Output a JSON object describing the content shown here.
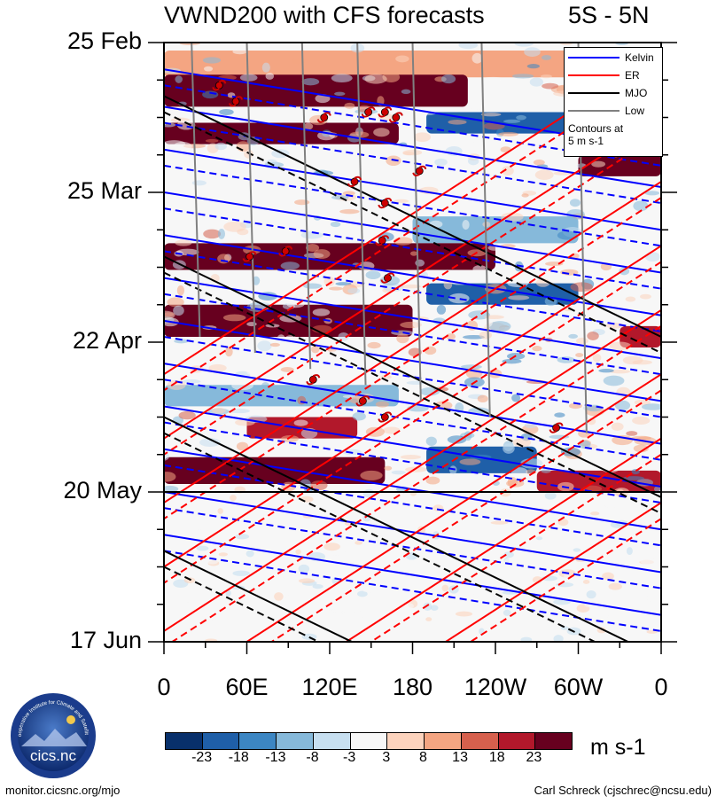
{
  "chart_data": {
    "type": "heatmap",
    "title": "VWND200 with CFS forecasts",
    "region": "5S - 5N",
    "xlabel": "",
    "ylabel": "",
    "x_ticks": [
      "0",
      "60E",
      "120E",
      "180",
      "120W",
      "60W",
      "0"
    ],
    "x_range_deg": [
      0,
      360
    ],
    "y_ticks": [
      "25 Feb",
      "25 Mar",
      "22 Apr",
      "20 May",
      "17 Jun"
    ],
    "y_range_days": [
      0,
      112
    ],
    "forecast_start_day": 84,
    "colorbar": {
      "units": "m s-1",
      "ticks": [
        "-23",
        "-18",
        "-13",
        "-8",
        "-3",
        "3",
        "8",
        "13",
        "18",
        "23"
      ],
      "colors": [
        "#08306b",
        "#1f5fa8",
        "#3c86c3",
        "#86b9da",
        "#c7dff0",
        "#f7f7f7",
        "#fcd3bd",
        "#f4a582",
        "#d6604d",
        "#b2182b",
        "#67001f"
      ]
    },
    "bands": [
      {
        "day": 4,
        "halfwidth": 2.5,
        "value": 8,
        "x_from": 0,
        "x_to": 360
      },
      {
        "day": 9,
        "halfwidth": 3,
        "value": 23,
        "x_from": 0,
        "x_to": 220
      },
      {
        "day": 15,
        "halfwidth": 2,
        "value": -23,
        "x_from": 190,
        "x_to": 330
      },
      {
        "day": 17,
        "halfwidth": 2,
        "value": 23,
        "x_from": 0,
        "x_to": 170
      },
      {
        "day": 23,
        "halfwidth": 2,
        "value": 23,
        "x_from": 300,
        "x_to": 360
      },
      {
        "day": 35,
        "halfwidth": 2.5,
        "value": -13,
        "x_from": 180,
        "x_to": 300
      },
      {
        "day": 40,
        "halfwidth": 2.5,
        "value": 23,
        "x_from": 0,
        "x_to": 240
      },
      {
        "day": 47,
        "halfwidth": 2,
        "value": -23,
        "x_from": 190,
        "x_to": 300
      },
      {
        "day": 52,
        "halfwidth": 3,
        "value": 23,
        "x_from": 0,
        "x_to": 180
      },
      {
        "day": 55,
        "halfwidth": 2,
        "value": 18,
        "x_from": 330,
        "x_to": 360
      },
      {
        "day": 66,
        "halfwidth": 2,
        "value": -13,
        "x_from": 0,
        "x_to": 170
      },
      {
        "day": 72,
        "halfwidth": 2,
        "value": 18,
        "x_from": 60,
        "x_to": 140
      },
      {
        "day": 78,
        "halfwidth": 2.5,
        "value": -23,
        "x_from": 190,
        "x_to": 270
      },
      {
        "day": 80,
        "halfwidth": 2.5,
        "value": 23,
        "x_from": 0,
        "x_to": 160
      },
      {
        "day": 82,
        "halfwidth": 2,
        "value": 18,
        "x_from": 270,
        "x_to": 360
      }
    ],
    "series": [
      {
        "name": "Kelvin",
        "color": "#0000ff",
        "start_days": [
          5,
          12,
          20,
          28,
          36,
          44,
          52,
          60,
          68,
          76,
          84,
          92
        ],
        "slope_deg_per_day": 24
      },
      {
        "name": "ER",
        "color": "#ff0000",
        "start_days": [
          2,
          14,
          26,
          38,
          50,
          62,
          74,
          86
        ],
        "slope_deg_per_day": -6
      },
      {
        "name": "MJO",
        "color": "#000000",
        "start_days": [
          10,
          40,
          70,
          95
        ],
        "slope_deg_per_day": 8
      },
      {
        "name": "Low",
        "color": "#808080",
        "start_days": [
          0
        ],
        "slope_deg_per_day": 0
      }
    ],
    "storms": [
      {
        "lon": 40,
        "day": 8
      },
      {
        "lon": 52,
        "day": 11
      },
      {
        "lon": 116,
        "day": 14
      },
      {
        "lon": 148,
        "day": 13
      },
      {
        "lon": 160,
        "day": 13
      },
      {
        "lon": 168,
        "day": 14
      },
      {
        "lon": 185,
        "day": 24
      },
      {
        "lon": 138,
        "day": 26
      },
      {
        "lon": 160,
        "day": 30
      },
      {
        "lon": 158,
        "day": 37
      },
      {
        "lon": 62,
        "day": 40
      },
      {
        "lon": 88,
        "day": 39
      },
      {
        "lon": 162,
        "day": 44
      },
      {
        "lon": 108,
        "day": 63
      },
      {
        "lon": 144,
        "day": 67
      },
      {
        "lon": 160,
        "day": 70
      },
      {
        "lon": 284,
        "day": 72
      }
    ],
    "legend": {
      "items": [
        "Kelvin",
        "ER",
        "MJO",
        "Low"
      ],
      "note_line1": "Contours at",
      "note_line2": "5 m s-1",
      "placement": "top-right"
    }
  },
  "footer": {
    "left": "monitor.cicsnc.org/mjo",
    "right": "Carl Schreck (cjschrec@ncsu.edu)"
  },
  "logo": {
    "text": "cics.nc",
    "arc_text": "Cooperative Institute for Climate and Satellites"
  }
}
